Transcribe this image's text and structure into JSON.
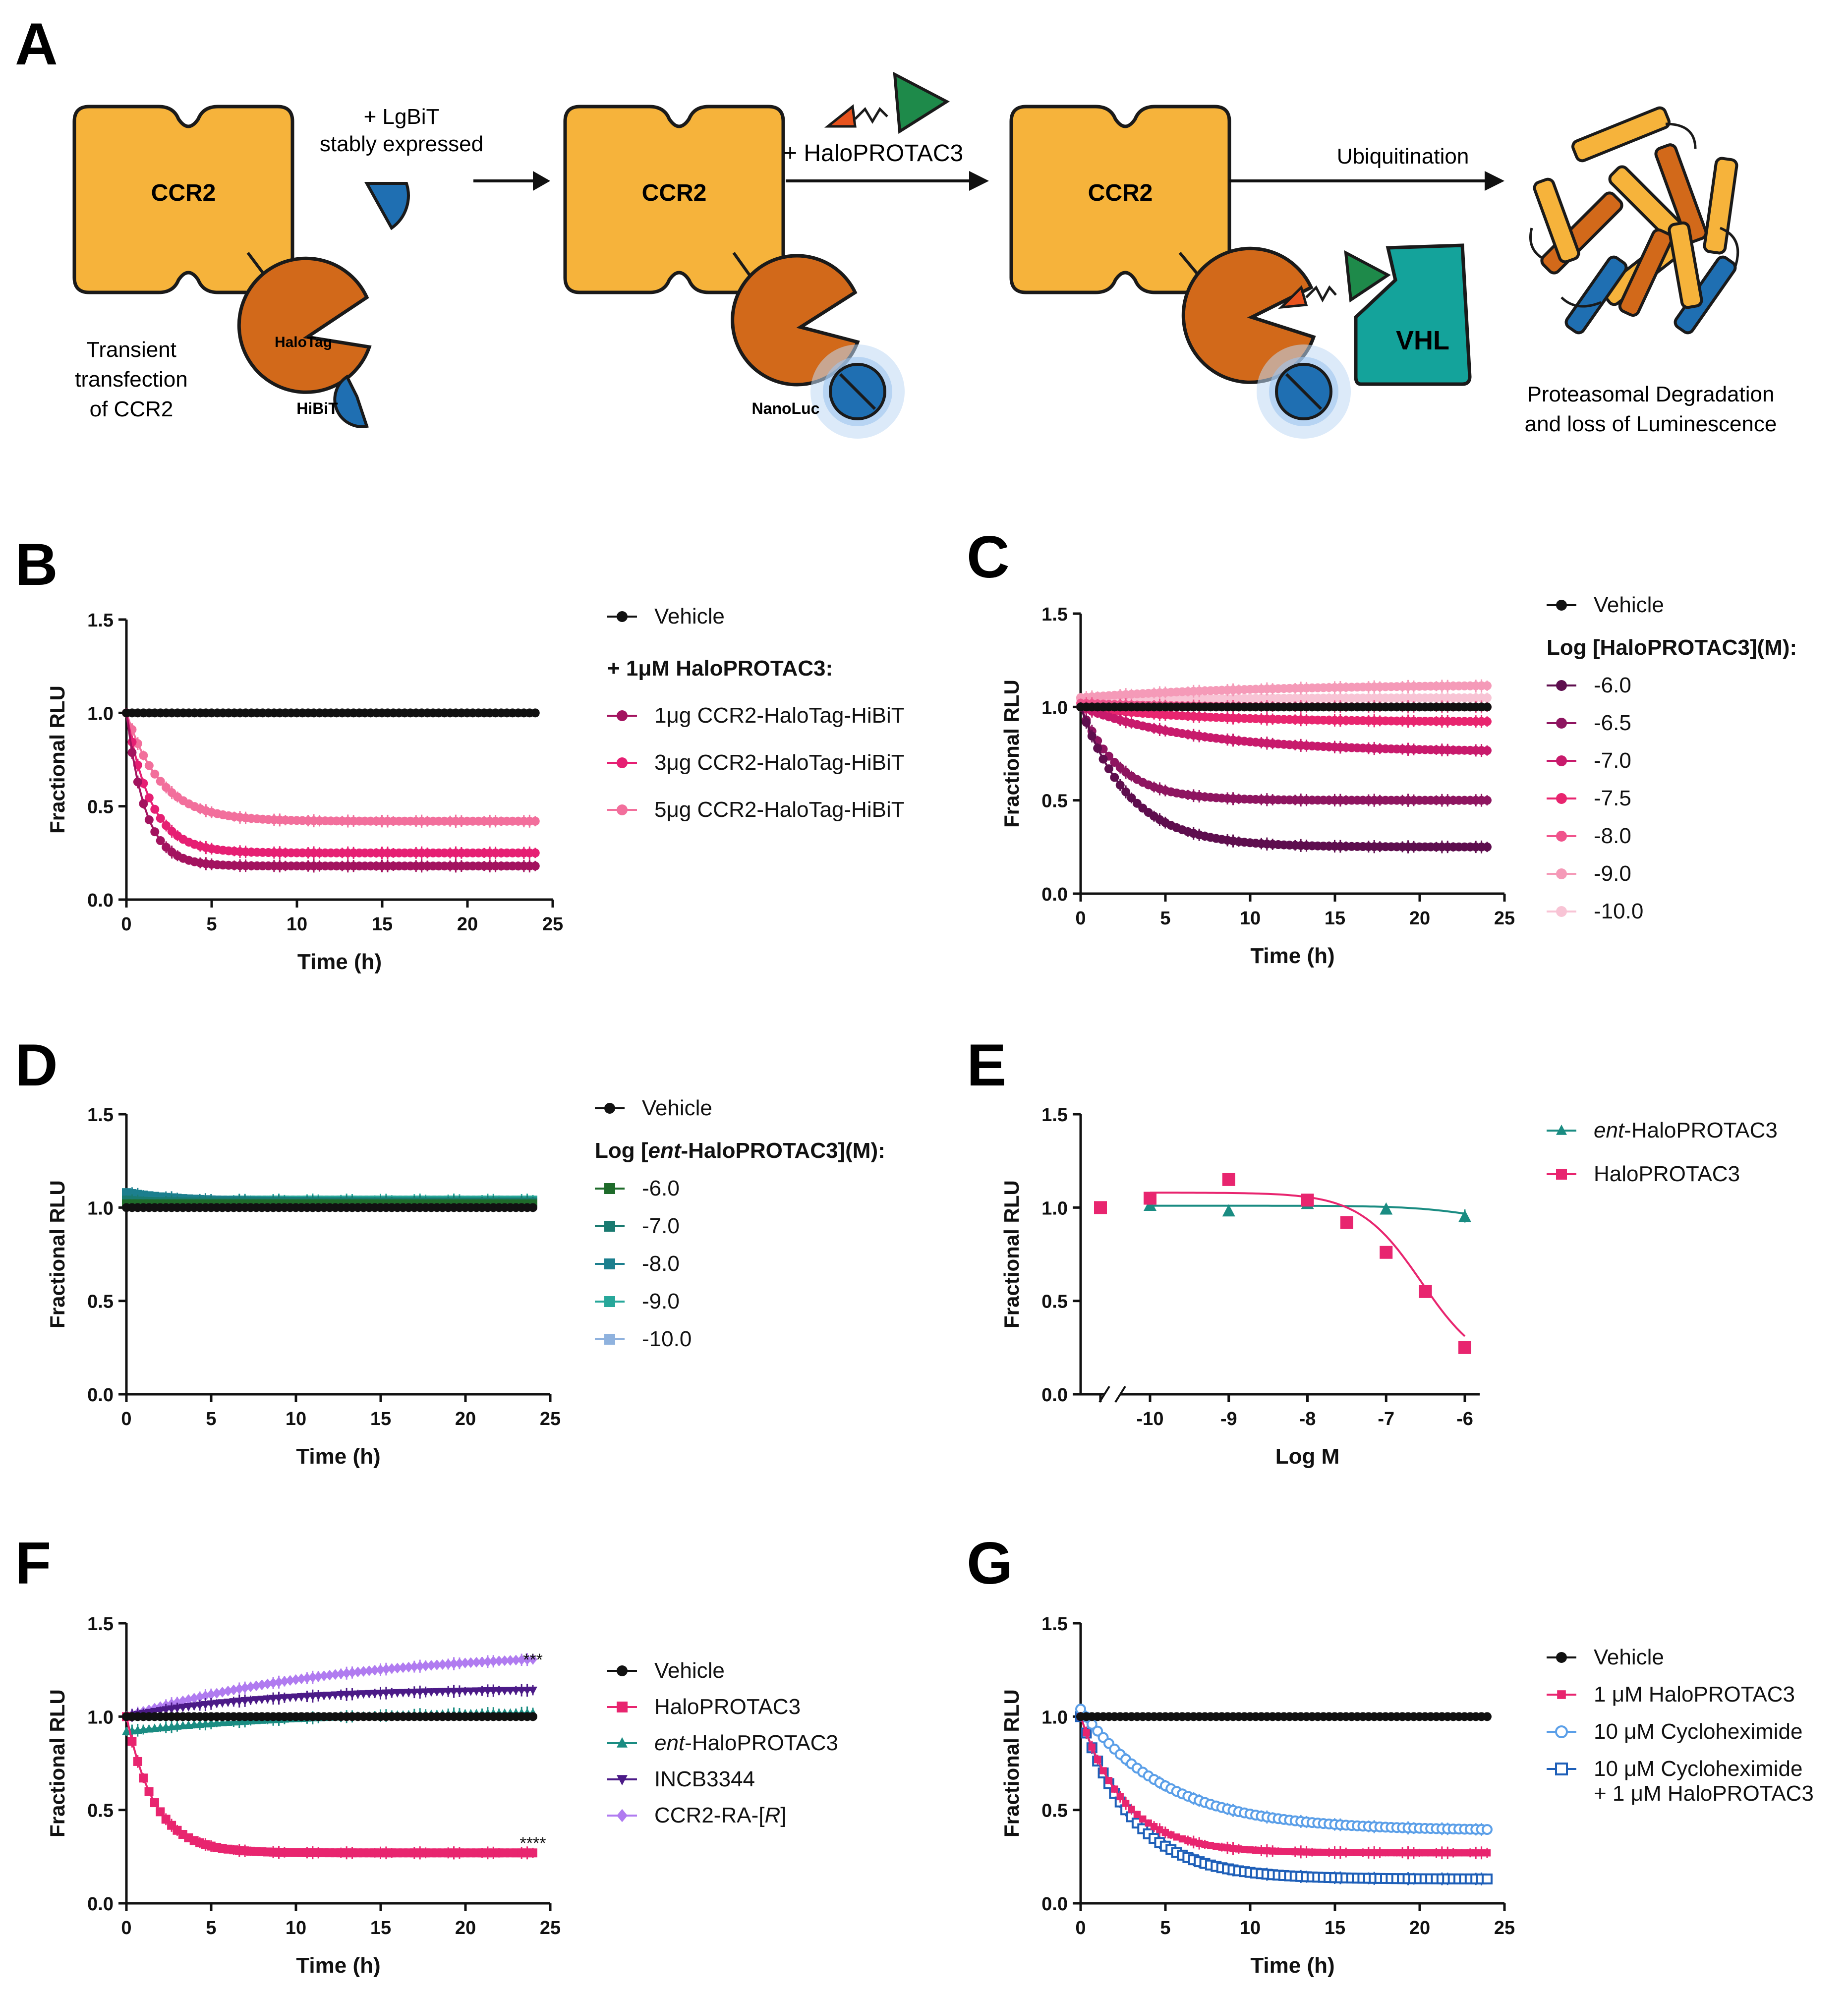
{
  "panel_letters": [
    "A",
    "B",
    "C",
    "D",
    "E",
    "F",
    "G"
  ],
  "colors": {
    "ccr2": "#F6B33B",
    "halotag": "#D2691A",
    "hibit": "#1F6FB2",
    "vhl": "#14A39B",
    "ligand_green": "#1E8A4A",
    "ligand_orange": "#E8531E",
    "black": "#111111"
  },
  "schematic": {
    "ccr2_label": "CCR2",
    "halotag_label": "HaloTag",
    "hibit_label": "HiBiT",
    "nanoluc_label": "NanoLuc",
    "vhl_label": "VHL",
    "lgbit_line1": "+ LgBiT",
    "lgbit_line2": "stably expressed",
    "transient_line1": "Transient",
    "transient_line2": "transfection",
    "transient_line3": "of CCR2",
    "haloprotac_label": "+ HaloPROTAC3",
    "ubiquitination_label": "Ubiquitination",
    "degradation_line1": "Proteasomal Degradation",
    "degradation_line2": "and loss of Luminescence"
  },
  "chart_data": [
    {
      "panel": "B",
      "type": "line",
      "xlabel": "Time (h)",
      "ylabel": "Fractional RLU",
      "xlim": [
        0,
        25
      ],
      "ylim": [
        0,
        1.5
      ],
      "xticks": [
        "0",
        "5",
        "10",
        "15",
        "20",
        "25"
      ],
      "yticks": [
        "0.0",
        "0.5",
        "1.0",
        "1.5"
      ],
      "legend_heading": "+ 1μM HaloPROTAC3:",
      "series": [
        {
          "name": "Vehicle",
          "color": "#111111",
          "marker": "circle",
          "start": 1.0,
          "plateau": 1.0,
          "k": 1
        },
        {
          "name": "1μg CCR2-HaloTag-HiBiT",
          "color": "#A3135F",
          "marker": "circle",
          "start": 1.0,
          "plateau": 0.18,
          "k": 0.9
        },
        {
          "name": "3μg CCR2-HaloTag-HiBiT",
          "color": "#E61F73",
          "marker": "circle",
          "start": 1.0,
          "plateau": 0.25,
          "k": 0.7
        },
        {
          "name": "5μg CCR2-HaloTag-HiBiT",
          "color": "#F26F9C",
          "marker": "circle",
          "start": 1.0,
          "plateau": 0.42,
          "k": 0.5
        }
      ]
    },
    {
      "panel": "C",
      "type": "line",
      "xlabel": "Time (h)",
      "ylabel": "Fractional RLU",
      "xlim": [
        0,
        25
      ],
      "ylim": [
        0,
        1.5
      ],
      "xticks": [
        "0",
        "5",
        "10",
        "15",
        "20",
        "25"
      ],
      "yticks": [
        "0.0",
        "0.5",
        "1.0",
        "1.5"
      ],
      "legend_heading": "Log [HaloPROTAC3](M):",
      "series": [
        {
          "name": "Vehicle",
          "color": "#111111",
          "marker": "circle",
          "start": 1.0,
          "plateau": 1.0,
          "k": 1
        },
        {
          "name": "-6.0",
          "color": "#5E0E4E",
          "marker": "circle",
          "start": 1.0,
          "plateau": 0.25,
          "k": 0.35
        },
        {
          "name": "-6.5",
          "color": "#8E1560",
          "marker": "circle",
          "start": 1.0,
          "plateau": 0.5,
          "k": 0.45
        },
        {
          "name": "-7.0",
          "color": "#C81A6C",
          "marker": "circle",
          "start": 1.0,
          "plateau": 0.76,
          "k": 0.15
        },
        {
          "name": "-7.5",
          "color": "#E8256F",
          "marker": "circle",
          "start": 1.0,
          "plateau": 0.92,
          "k": 0.15
        },
        {
          "name": "-8.0",
          "color": "#F0548C",
          "marker": "circle",
          "start": 1.02,
          "plateau": 1.0,
          "k": 0.2
        },
        {
          "name": "-9.0",
          "color": "#F59AB8",
          "marker": "circle",
          "start": 1.05,
          "plateau": 1.12,
          "k": 0.1
        },
        {
          "name": "-10.0",
          "color": "#F8C4D5",
          "marker": "circle",
          "start": 1.04,
          "plateau": 1.05,
          "k": 0.1
        }
      ]
    },
    {
      "panel": "D",
      "type": "line",
      "xlabel": "Time (h)",
      "ylabel": "Fractional RLU",
      "xlim": [
        0,
        25
      ],
      "ylim": [
        0,
        1.5
      ],
      "xticks": [
        "0",
        "5",
        "10",
        "15",
        "20",
        "25"
      ],
      "yticks": [
        "0.0",
        "0.5",
        "1.0",
        "1.5"
      ],
      "legend_heading_pre": "Log [",
      "legend_heading_italic": "ent",
      "legend_heading_post": "-HaloPROTAC3](M):",
      "series": [
        {
          "name": "Vehicle",
          "color": "#111111",
          "marker": "circle",
          "start": 1.0,
          "plateau": 1.0,
          "k": 1
        },
        {
          "name": "-6.0",
          "color": "#1E6B2A",
          "marker": "square",
          "start": 1.02,
          "plateau": 1.02,
          "k": 1
        },
        {
          "name": "-7.0",
          "color": "#1A7A70",
          "marker": "square",
          "start": 1.04,
          "plateau": 1.03,
          "k": 1
        },
        {
          "name": "-8.0",
          "color": "#1C7F8E",
          "marker": "square",
          "start": 1.08,
          "plateau": 1.03,
          "k": 0.3
        },
        {
          "name": "-9.0",
          "color": "#27A79A",
          "marker": "square",
          "start": 1.05,
          "plateau": 1.04,
          "k": 1
        },
        {
          "name": "-10.0",
          "color": "#8FB2DE",
          "marker": "square",
          "start": 1.03,
          "plateau": 1.02,
          "k": 1
        }
      ]
    },
    {
      "panel": "E",
      "type": "scatter",
      "xlabel": "Log M",
      "ylabel": "Fractional RLU",
      "xlim": [
        -10,
        -6
      ],
      "ylim": [
        0,
        1.5
      ],
      "xticks": [
        "-10",
        "-9",
        "-8",
        "-7",
        "-6"
      ],
      "yticks": [
        "0.0",
        "0.5",
        "1.0",
        "1.5"
      ],
      "series": [
        {
          "name": "ent-HaloPROTAC3",
          "name_italic": "ent",
          "name_rest": "-HaloPROTAC3",
          "color": "#1A8C82",
          "marker": "triangle",
          "x": [
            -10,
            -9,
            -8,
            -7,
            -6
          ],
          "y": [
            1.01,
            0.98,
            1.02,
            0.99,
            0.95
          ],
          "fit": {
            "top": 1.01,
            "bottom": 0.9,
            "ec50": -5.8,
            "hill": 1
          }
        },
        {
          "name": "HaloPROTAC3",
          "name_italic": "",
          "name_rest": "HaloPROTAC3",
          "color": "#E8256F",
          "marker": "square",
          "x": [
            -10,
            -9,
            -8,
            -7.5,
            -7,
            -6.5,
            -6
          ],
          "y": [
            1.05,
            1.15,
            1.04,
            0.92,
            0.76,
            0.55,
            0.25
          ],
          "fit": {
            "top": 1.08,
            "bottom": 0.12,
            "ec50": -6.55,
            "hill": 1.1
          },
          "control": {
            "x_label": "",
            "y": 1.0
          }
        }
      ]
    },
    {
      "panel": "F",
      "type": "line",
      "xlabel": "Time (h)",
      "ylabel": "Fractional RLU",
      "xlim": [
        0,
        25
      ],
      "ylim": [
        0,
        1.5
      ],
      "xticks": [
        "0",
        "5",
        "10",
        "15",
        "20",
        "25"
      ],
      "yticks": [
        "0.0",
        "0.5",
        "1.0",
        "1.5"
      ],
      "annotations": [
        "***",
        "****"
      ],
      "series": [
        {
          "name": "Vehicle",
          "name_italic": "",
          "name_rest": "Vehicle",
          "name_tail": "",
          "color": "#111111",
          "marker": "circle",
          "start": 1.0,
          "plateau": 1.0,
          "k": 1
        },
        {
          "name": "HaloPROTAC3",
          "name_italic": "",
          "name_rest": "HaloPROTAC3",
          "name_tail": "",
          "color": "#E8256F",
          "marker": "square",
          "start": 1.0,
          "plateau": 0.27,
          "k": 0.6
        },
        {
          "name": "ent-HaloPROTAC3",
          "name_italic": "ent",
          "name_rest": "-HaloPROTAC3",
          "name_tail": "",
          "color": "#1A8C82",
          "marker": "triangle",
          "start": 0.92,
          "plateau": 1.03,
          "k": 0.1
        },
        {
          "name": "INCB3344",
          "name_italic": "",
          "name_rest": "INCB3344",
          "name_tail": "",
          "color": "#4B1A87",
          "marker": "triangle-down",
          "start": 1.0,
          "plateau": 1.15,
          "k": 0.12
        },
        {
          "name": "CCR2-RA-[R]",
          "name_italic": "R",
          "name_rest": "CCR2-RA-[",
          "name_tail": "]",
          "color": "#B07BF0",
          "marker": "diamond",
          "start": 1.0,
          "plateau": 1.36,
          "k": 0.08
        }
      ]
    },
    {
      "panel": "G",
      "type": "line",
      "xlabel": "Time (h)",
      "ylabel": "Fractional RLU",
      "xlim": [
        0,
        25
      ],
      "ylim": [
        0,
        1.5
      ],
      "xticks": [
        "0",
        "5",
        "10",
        "15",
        "20",
        "25"
      ],
      "yticks": [
        "0.0",
        "0.5",
        "1.0",
        "1.5"
      ],
      "series": [
        {
          "name": "Vehicle",
          "lines": [
            "Vehicle"
          ],
          "color": "#111111",
          "marker": "circle",
          "start": 1.0,
          "plateau": 1.0,
          "k": 1
        },
        {
          "name": "1 μM HaloPROTAC3",
          "lines": [
            "1 μM HaloPROTAC3"
          ],
          "color": "#E8256F",
          "marker": "square-small",
          "start": 1.0,
          "plateau": 0.27,
          "k": 0.38
        },
        {
          "name": "10 μM Cycloheximide",
          "lines": [
            "10 μM Cycloheximide"
          ],
          "color": "#5B9FE8",
          "marker": "circle-open",
          "start": 1.04,
          "plateau": 0.39,
          "k": 0.2
        },
        {
          "name": "10 μM Cycloheximide + 1 μM HaloPROTAC3",
          "lines": [
            "10 μM Cycloheximide",
            "+ 1 μM HaloPROTAC3"
          ],
          "color": "#1E5FB8",
          "marker": "square-open",
          "start": 1.0,
          "plateau": 0.13,
          "k": 0.32
        }
      ]
    }
  ]
}
